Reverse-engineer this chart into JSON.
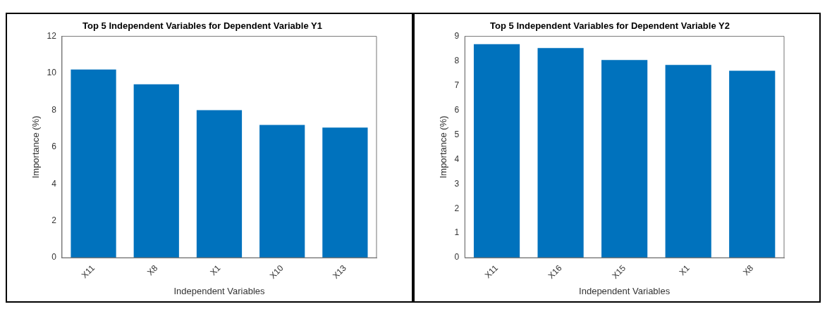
{
  "chart_data": [
    {
      "type": "bar",
      "title": "Top 5 Independent Variables for Dependent Variable Y1",
      "xlabel": "Independent Variables",
      "ylabel": "Importance (%)",
      "categories": [
        "X11",
        "X8",
        "X1",
        "X10",
        "X13"
      ],
      "values": [
        10.2,
        9.4,
        8.0,
        7.2,
        7.05
      ],
      "color": "#0072bd",
      "ylim": [
        0,
        12
      ],
      "yticks": [
        0,
        2,
        4,
        6,
        8,
        10,
        12
      ]
    },
    {
      "type": "bar",
      "title": "Top 5 Independent Variables for Dependent Variable Y2",
      "xlabel": "Independent Variables",
      "ylabel": "Importance (%)",
      "categories": [
        "X11",
        "X16",
        "X15",
        "X1",
        "X8"
      ],
      "values": [
        8.68,
        8.52,
        8.04,
        7.84,
        7.6
      ],
      "color": "#0072bd",
      "ylim": [
        0,
        9
      ],
      "yticks": [
        0,
        1,
        2,
        3,
        4,
        5,
        6,
        7,
        8,
        9
      ]
    }
  ]
}
